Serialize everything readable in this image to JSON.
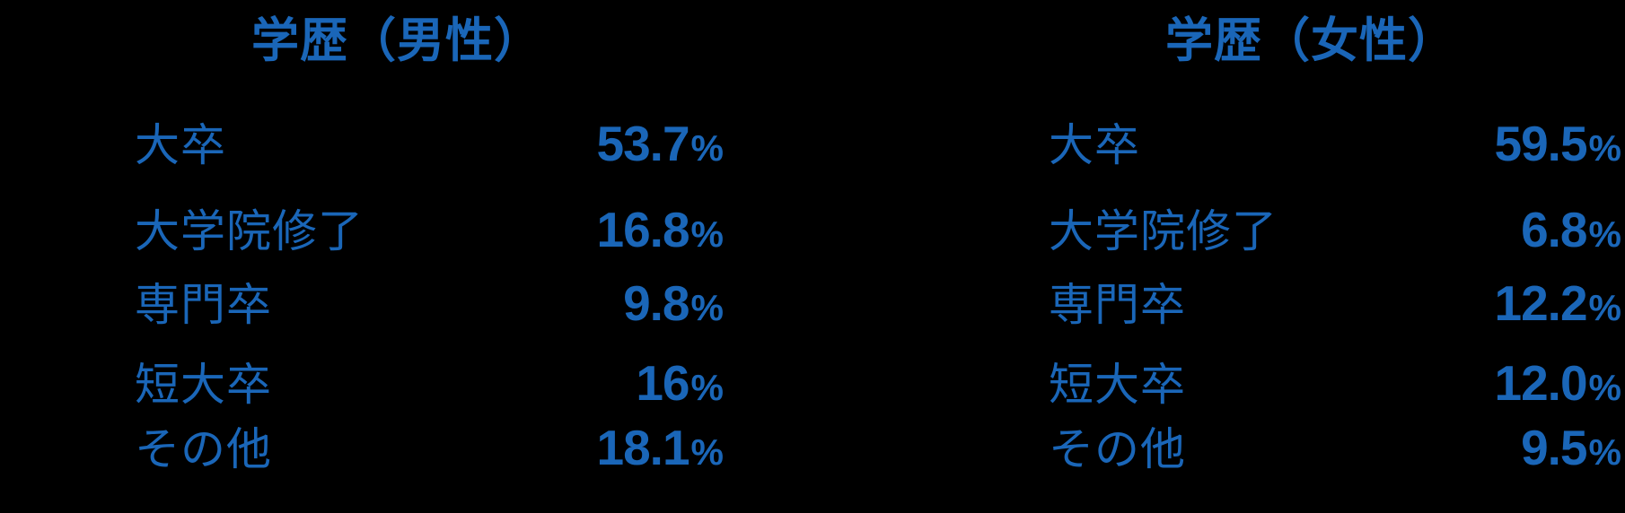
{
  "page": {
    "background_color": "#000000",
    "text_color": "#1A66B8"
  },
  "male_panel": {
    "title": "学歴（男性）",
    "rows": [
      {
        "label": "大卒",
        "number": "53.7",
        "unit": "%"
      },
      {
        "label": "大学院修了",
        "number": "16.8",
        "unit": "%"
      },
      {
        "label": "専門卒",
        "number": "9.8",
        "unit": "%"
      },
      {
        "label": "短大卒",
        "number": "16",
        "unit": "%"
      },
      {
        "label": "その他",
        "number": "18.1",
        "unit": "%"
      }
    ]
  },
  "female_panel": {
    "title": "学歴（女性）",
    "rows": [
      {
        "label": "大卒",
        "number": "59.5",
        "unit": "%"
      },
      {
        "label": "大学院修了",
        "number": "6.8",
        "unit": "%"
      },
      {
        "label": "専門卒",
        "number": "12.2",
        "unit": "%"
      },
      {
        "label": "短大卒",
        "number": "12.0",
        "unit": "%"
      },
      {
        "label": "その他",
        "number": "9.5",
        "unit": "%"
      }
    ]
  },
  "chart_data": [
    {
      "type": "table",
      "title": "学歴（男性）",
      "categories": [
        "大卒",
        "大学院修了",
        "専門卒",
        "短大卒",
        "その他"
      ],
      "values": [
        53.7,
        16.8,
        9.8,
        16,
        18.1
      ],
      "unit": "%",
      "value_alignment": "right",
      "accent_color": "#1A66B8"
    },
    {
      "type": "table",
      "title": "学歴（女性）",
      "categories": [
        "大卒",
        "大学院修了",
        "専門卒",
        "短大卒",
        "その他"
      ],
      "values": [
        59.5,
        6.8,
        12.2,
        12.0,
        9.5
      ],
      "unit": "%",
      "value_alignment": "right",
      "accent_color": "#1A66B8"
    }
  ]
}
